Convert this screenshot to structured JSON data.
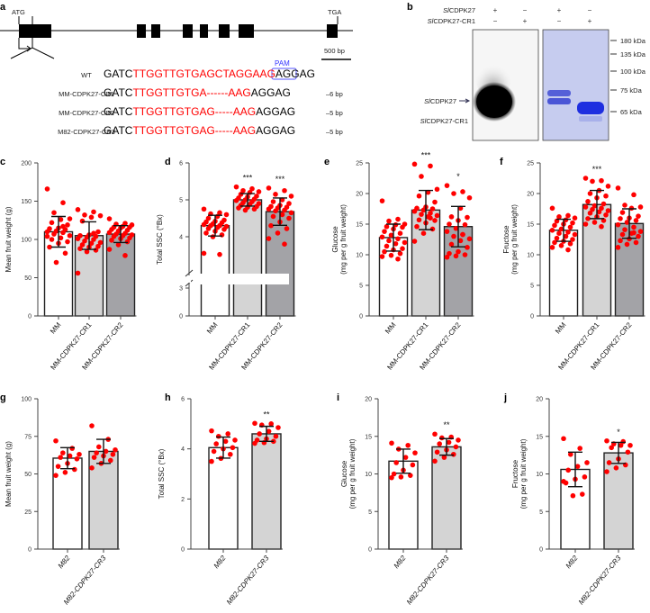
{
  "panel_labels": [
    "a",
    "b",
    "c",
    "d",
    "e",
    "f",
    "g",
    "h",
    "i",
    "j"
  ],
  "panel_a": {
    "atg": "ATG",
    "tga": "TGA",
    "scale_bar": "500 bp",
    "pam": "PAM",
    "rows": [
      {
        "name": "WT",
        "prefix": "GATC",
        "red": "TTGGTTGTGAGCTAGGAAG",
        "suffix": "AGGAG",
        "deletion": ""
      },
      {
        "name": "MM-CDPK27-CR1",
        "prefix": "GATC",
        "red": "TTGGTTGTGA------AAG",
        "suffix": "AGGAG",
        "deletion": "–6 bp"
      },
      {
        "name": "MM-CDPK27-CR2",
        "prefix": "GATC",
        "red": "TTGGTTGTGAG-----AAG",
        "suffix": "AGGAG",
        "deletion": "–5 bp"
      },
      {
        "name": "M82-CDPK27-CR3",
        "prefix": "GATC",
        "red": "TTGGTTGTGAG-----AAG",
        "suffix": "AGGAG",
        "deletion": "–5 bp"
      }
    ]
  },
  "panel_b": {
    "row_labels": [
      "SlCDPK27",
      "SlCDPK27-CR1"
    ],
    "signs": [
      [
        "+",
        "−",
        "+",
        "−"
      ],
      [
        "−",
        "+",
        "−",
        "+"
      ]
    ],
    "band_labels": [
      "SlCDPK27",
      "SlCDPK27-CR1"
    ],
    "markers": [
      "180 kDa",
      "135 kDa",
      "100 kDa",
      "75 kDa",
      "65 kDa"
    ]
  },
  "chart_data": [
    {
      "id": "c",
      "type": "bar",
      "ylabel": [
        "Mean fruit weight (g)"
      ],
      "ylim": [
        0,
        200
      ],
      "ticks": [
        0,
        50,
        100,
        150,
        200
      ],
      "categories": [
        "MM",
        "MM-CDPK27-CR1",
        "MM-CDPK27-CR2"
      ],
      "means": [
        110,
        105,
        107
      ],
      "sd": [
        20,
        18,
        11
      ],
      "sig": [
        "",
        "",
        ""
      ],
      "points": [
        [
          166,
          148,
          135,
          127,
          126,
          122,
          119,
          115,
          114,
          113,
          111,
          110,
          109,
          107,
          105,
          102,
          100,
          97,
          95,
          90,
          82,
          70,
          104,
          117
        ],
        [
          139,
          136,
          132,
          131,
          129,
          124,
          110,
          106,
          105,
          104,
          103,
          101,
          100,
          98,
          96,
          95,
          93,
          91,
          90,
          88,
          86,
          84,
          56,
          108
        ],
        [
          127,
          121,
          120,
          119,
          117,
          116,
          116,
          115,
          113,
          112,
          111,
          109,
          108,
          107,
          106,
          105,
          104,
          102,
          101,
          99,
          97,
          93,
          87,
          79
        ]
      ]
    },
    {
      "id": "d",
      "type": "bar",
      "ylabel": [
        "Total SSC (°Bx)"
      ],
      "ylim": [
        0,
        6
      ],
      "ticks": [
        0,
        3,
        4,
        5,
        6
      ],
      "axis_break": [
        3.2,
        3.6
      ],
      "categories": [
        "MM",
        "MM-CDPK27-CR1",
        "MM-CDPK27-CR2"
      ],
      "means": [
        4.3,
        5.0,
        4.68
      ],
      "sd": [
        0.28,
        0.17,
        0.37
      ],
      "sig": [
        "",
        "***",
        "***"
      ],
      "points": [
        [
          4.75,
          4.65,
          4.62,
          4.6,
          4.55,
          4.5,
          4.45,
          4.42,
          4.4,
          4.38,
          4.35,
          4.33,
          4.3,
          4.3,
          4.28,
          4.25,
          4.22,
          4.2,
          4.15,
          4.1,
          4.05,
          4.0,
          3.55,
          3.52
        ],
        [
          5.35,
          5.3,
          5.25,
          5.22,
          5.2,
          5.15,
          5.1,
          5.08,
          5.05,
          5.02,
          5.0,
          4.98,
          4.95,
          4.92,
          4.9,
          4.88,
          4.85,
          4.82,
          4.8,
          4.78,
          4.75,
          4.72
        ],
        [
          5.32,
          5.25,
          5.15,
          5.1,
          5.0,
          4.95,
          4.9,
          4.85,
          4.82,
          4.8,
          4.78,
          4.75,
          4.72,
          4.7,
          4.65,
          4.6,
          4.55,
          4.5,
          4.4,
          4.3,
          4.22,
          4.1,
          3.95,
          3.8
        ]
      ]
    },
    {
      "id": "e",
      "type": "bar",
      "ylabel": [
        "Glucose",
        "(mg per g fruit weight)"
      ],
      "ylim": [
        0,
        25
      ],
      "ticks": [
        0,
        5,
        10,
        15,
        20,
        25
      ],
      "categories": [
        "MM",
        "MM-CDPK27-CR1",
        "MM-CDPK27-CR2"
      ],
      "means": [
        12.8,
        17.3,
        14.6
      ],
      "sd": [
        2.2,
        3.2,
        3.3
      ],
      "sig": [
        "",
        "***",
        "*"
      ],
      "points": [
        [
          18.8,
          15.8,
          15.5,
          15,
          14.9,
          14.6,
          14.5,
          14.2,
          13.8,
          13.5,
          13.2,
          12.9,
          12.6,
          12.3,
          12,
          11.8,
          11.4,
          11,
          10.8,
          10.5,
          10.2,
          9.9,
          9.7,
          9.3
        ],
        [
          24.8,
          24.5,
          22.8,
          20.7,
          20.2,
          19.6,
          18.6,
          17.8,
          17.6,
          17.5,
          17.3,
          17.1,
          16.8,
          16.6,
          16.4,
          16.2,
          15.7,
          15.6,
          15.2,
          14.6,
          14.2,
          13.5,
          12.2,
          16.0
        ],
        [
          21.3,
          20.3,
          20.0,
          19.3,
          17.6,
          16.2,
          16.1,
          15.6,
          15.0,
          14.9,
          14.3,
          13.8,
          13.3,
          13.0,
          12.6,
          12.3,
          11.7,
          11.2,
          10.5,
          10.2,
          10.0,
          9.8,
          9.6,
          13.3
        ]
      ]
    },
    {
      "id": "f",
      "type": "bar",
      "ylabel": [
        "Fructose",
        "(mg per g fruit weight)"
      ],
      "ylim": [
        0,
        25
      ],
      "ticks": [
        0,
        5,
        10,
        15,
        20,
        25
      ],
      "categories": [
        "MM",
        "MM-CDPK27-CR1",
        "MM-CDPK27-CR2"
      ],
      "means": [
        14.0,
        18.2,
        15.1
      ],
      "sd": [
        1.8,
        2.3,
        2.4
      ],
      "sig": [
        "",
        "***",
        ""
      ],
      "points": [
        [
          17.6,
          16.4,
          16.2,
          16,
          15.7,
          15.5,
          15.2,
          15,
          14.8,
          14.5,
          14.2,
          14,
          13.7,
          13.5,
          13.3,
          13,
          12.7,
          12.5,
          12.2,
          12,
          11.8,
          11.5,
          11.2,
          10.8
        ],
        [
          22.5,
          22.1,
          22.0,
          21.2,
          20.5,
          20.0,
          19.6,
          19.3,
          18.7,
          18.3,
          18.0,
          17.8,
          17.6,
          17.4,
          17.2,
          17.0,
          16.8,
          16.5,
          16.2,
          15.9,
          15.6,
          15.3,
          15.0,
          14.6
        ],
        [
          20.9,
          19.8,
          18.1,
          17.8,
          17.6,
          16.9,
          16.3,
          16.0,
          15.9,
          15.6,
          15.3,
          14.9,
          14.5,
          14.1,
          13.8,
          13.5,
          13.3,
          13.0,
          12.6,
          12.3,
          12.0,
          11.7,
          11.2,
          13.6
        ]
      ]
    },
    {
      "id": "g",
      "type": "bar",
      "ylabel": [
        "Mean fruit weight (g)"
      ],
      "ylim": [
        0,
        100
      ],
      "ticks": [
        0,
        25,
        50,
        75,
        100
      ],
      "categories": [
        "M82",
        "M82-CDPK27-CR3"
      ],
      "means": [
        60.5,
        65
      ],
      "sd": [
        7,
        8
      ],
      "sig": [
        "",
        ""
      ],
      "points": [
        [
          72,
          67,
          64,
          63,
          62,
          61,
          60,
          57,
          55,
          53,
          51,
          49
        ],
        [
          82,
          73,
          68,
          66,
          65,
          64,
          63,
          62,
          61,
          59,
          57,
          54
        ]
      ]
    },
    {
      "id": "h",
      "type": "bar",
      "ylabel": [
        "Total SSC (°Bx)"
      ],
      "ylim": [
        0,
        6
      ],
      "ticks": [
        0,
        2,
        4,
        6
      ],
      "categories": [
        "M82",
        "M82-CDPK27-CR3"
      ],
      "means": [
        4.05,
        4.6
      ],
      "sd": [
        0.42,
        0.3
      ],
      "sig": [
        "",
        "**"
      ],
      "points": [
        [
          4.72,
          4.6,
          4.5,
          4.35,
          4.3,
          4.2,
          4.05,
          4.0,
          3.9,
          3.78,
          3.62,
          3.5
        ],
        [
          5.02,
          5.0,
          4.95,
          4.85,
          4.7,
          4.6,
          4.5,
          4.4,
          4.35,
          4.3,
          4.25,
          4.22
        ]
      ]
    },
    {
      "id": "i",
      "type": "bar",
      "ylabel": [
        "Glucose",
        "(mg per g fruit weight)"
      ],
      "ylim": [
        0,
        20
      ],
      "ticks": [
        0,
        5,
        10,
        15,
        20
      ],
      "categories": [
        "M82",
        "M82-CDPK27-CR3"
      ],
      "means": [
        11.7,
        13.6
      ],
      "sd": [
        1.6,
        1.1
      ],
      "sig": [
        "",
        "**"
      ],
      "points": [
        [
          14.1,
          13.8,
          13.3,
          12.8,
          12.2,
          11.5,
          11.2,
          10.5,
          10.0,
          9.8,
          9.6,
          9.5
        ],
        [
          15.3,
          14.9,
          14.8,
          14.5,
          14.2,
          14.0,
          13.6,
          13.2,
          12.9,
          12.6,
          12.2,
          11.7
        ]
      ]
    },
    {
      "id": "j",
      "type": "bar",
      "ylabel": [
        "Fructose",
        "(mg per g fruit weight)"
      ],
      "ylim": [
        0,
        20
      ],
      "ticks": [
        0,
        5,
        10,
        15,
        20
      ],
      "categories": [
        "M82",
        "M82-CDPK27-CR3"
      ],
      "means": [
        10.6,
        12.8
      ],
      "sd": [
        2.3,
        1.4
      ],
      "sig": [
        "",
        "*"
      ],
      "points": [
        [
          14.7,
          13.4,
          12.6,
          11.5,
          11.0,
          10.5,
          9.6,
          9.3,
          8.8,
          7.3,
          7.1,
          9.0
        ],
        [
          14.4,
          14.3,
          14.0,
          13.8,
          13.8,
          13.5,
          12.9,
          12.0,
          11.5,
          11.2,
          10.8,
          10.3
        ]
      ]
    }
  ],
  "colors": {
    "point": "#ff0000",
    "bar_wt": "#ffffff",
    "bar_cr1": "#d4d4d4",
    "bar_cr2": "#a3a3a7",
    "pam": "#3333ff",
    "seq_red": "#ff0000"
  }
}
